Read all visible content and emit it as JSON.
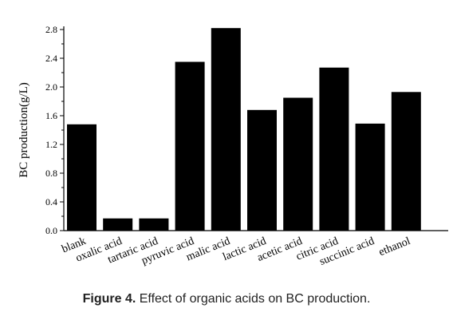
{
  "chart_data": {
    "type": "bar",
    "categories": [
      "blank",
      "oxalic acid",
      "tartaric acid",
      "pyruvic acid",
      "malic acid",
      "lactic acid",
      "acetic acid",
      "citric acid",
      "succinic acid",
      "ethanol"
    ],
    "values": [
      1.48,
      0.17,
      0.17,
      2.35,
      2.82,
      1.68,
      1.85,
      2.27,
      1.49,
      1.93
    ],
    "ylabel": "BC production(g/L)",
    "xlabel": "",
    "ylim": [
      0.0,
      2.8
    ],
    "yticks": [
      "0.0",
      "0.4",
      "0.8",
      "1.2",
      "1.6",
      "2.0",
      "2.4",
      "2.8"
    ],
    "bar_color": "#000000",
    "grid": false,
    "legend": "none"
  },
  "caption": {
    "label": "Figure 4.",
    "text": " Effect of organic acids on BC production."
  }
}
